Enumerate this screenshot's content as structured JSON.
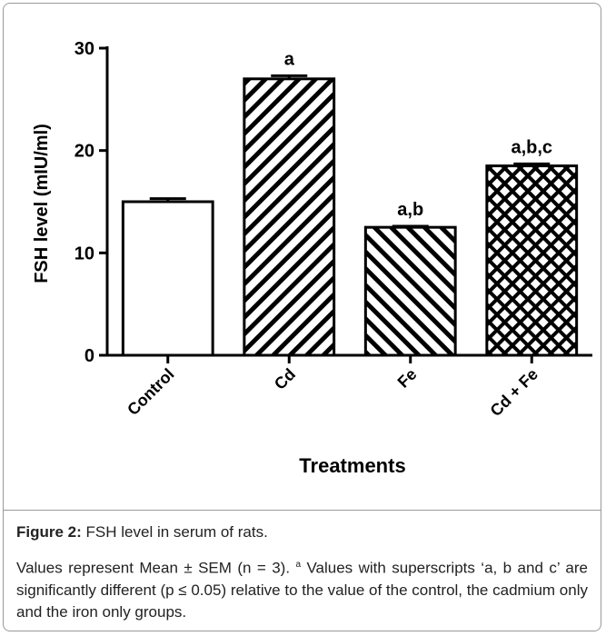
{
  "chart_data": {
    "type": "bar",
    "categories": [
      "Control",
      "Cd",
      "Fe",
      "Cd + Fe"
    ],
    "values": [
      15,
      27,
      12.5,
      18.5
    ],
    "errors": [
      0.3,
      0.3,
      0.1,
      0.2
    ],
    "significance": [
      null,
      "a",
      "a,b",
      "a,b,c"
    ],
    "patterns": [
      "none",
      "backslash",
      "slash",
      "cross"
    ],
    "color": "#000000",
    "ylim": [
      0,
      30
    ],
    "yticks": [
      0,
      10,
      20,
      30
    ],
    "xlabel": "Treatments",
    "ylabel": "FSH level (mIU/ml)"
  },
  "caption": {
    "label": "Figure 2:",
    "title": "FSH level in serum of rats.",
    "note_start": "Values represent Mean ± SEM (n = 3).",
    "note_sup": "a",
    "note_end": "Values with superscripts ‘a, b and c’ are significantly different (p ≤ 0.05) relative to the value of the control, the cadmium only and the iron only groups."
  }
}
